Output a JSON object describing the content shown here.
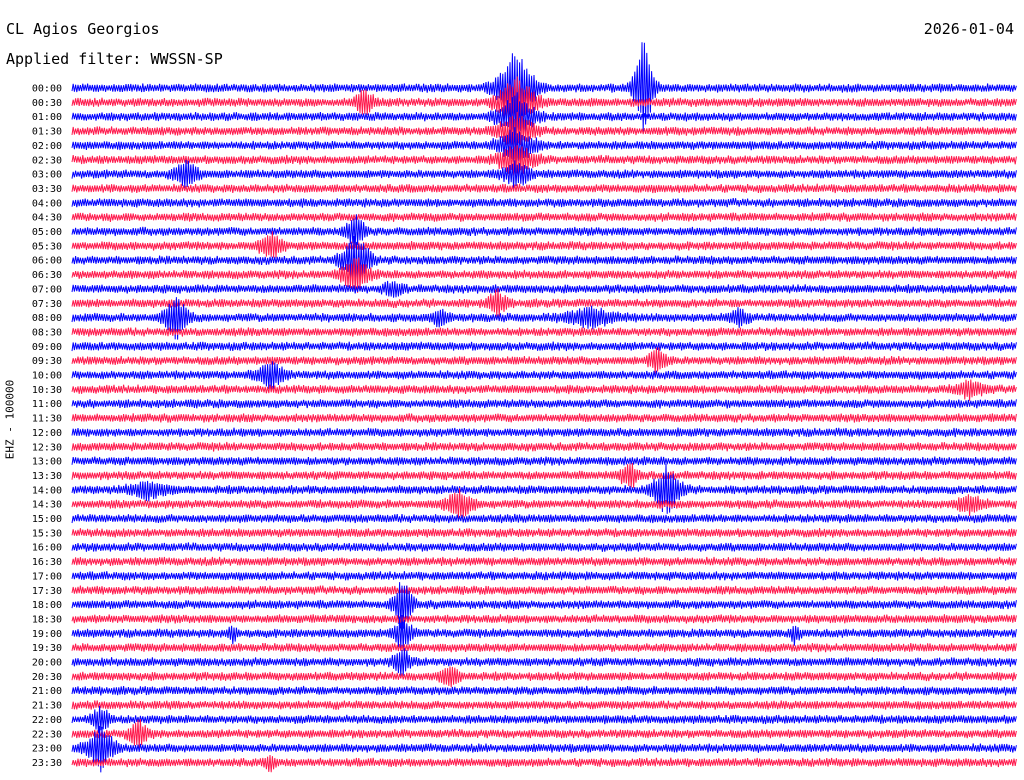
{
  "header": {
    "station": "CL Agios Georgios",
    "date": "2026-01-04",
    "filter": "Applied filter: WWSSN-SP"
  },
  "chart_data": {
    "type": "helicorder",
    "title": "CL Agios Georgios",
    "ylabel": "EHZ - 100000",
    "colors": [
      "#0000ff",
      "#ff1a4d"
    ],
    "time_labels": [
      "00:00",
      "00:30",
      "01:00",
      "01:30",
      "02:00",
      "02:30",
      "03:00",
      "03:30",
      "04:00",
      "04:30",
      "05:00",
      "05:30",
      "06:00",
      "06:30",
      "07:00",
      "07:30",
      "08:00",
      "08:30",
      "09:00",
      "09:30",
      "10:00",
      "10:30",
      "11:00",
      "11:30",
      "12:00",
      "12:30",
      "13:00",
      "13:30",
      "14:00",
      "14:30",
      "15:00",
      "15:30",
      "16:00",
      "16:30",
      "17:00",
      "17:30",
      "18:00",
      "18:30",
      "19:00",
      "19:30",
      "20:00",
      "20:30",
      "21:00",
      "21:30",
      "22:00",
      "22:30",
      "23:00",
      "23:30"
    ],
    "events": [
      {
        "row": 0,
        "x": 0.605,
        "amp": 6,
        "dur": 0.02
      },
      {
        "row": 0,
        "x": 0.47,
        "amp": 4.5,
        "dur": 0.04
      },
      {
        "row": 1,
        "x": 0.47,
        "amp": 3,
        "dur": 0.04
      },
      {
        "row": 1,
        "x": 0.31,
        "amp": 1.5,
        "dur": 0.02
      },
      {
        "row": 2,
        "x": 0.47,
        "amp": 2.5,
        "dur": 0.04
      },
      {
        "row": 3,
        "x": 0.47,
        "amp": 2,
        "dur": 0.04
      },
      {
        "row": 4,
        "x": 0.47,
        "amp": 2,
        "dur": 0.04
      },
      {
        "row": 5,
        "x": 0.47,
        "amp": 1.8,
        "dur": 0.04
      },
      {
        "row": 6,
        "x": 0.12,
        "amp": 1.6,
        "dur": 0.025
      },
      {
        "row": 6,
        "x": 0.47,
        "amp": 1.5,
        "dur": 0.03
      },
      {
        "row": 10,
        "x": 0.3,
        "amp": 2,
        "dur": 0.02
      },
      {
        "row": 11,
        "x": 0.21,
        "amp": 1.5,
        "dur": 0.025
      },
      {
        "row": 12,
        "x": 0.3,
        "amp": 3,
        "dur": 0.03
      },
      {
        "row": 13,
        "x": 0.3,
        "amp": 2,
        "dur": 0.03
      },
      {
        "row": 14,
        "x": 0.34,
        "amp": 1,
        "dur": 0.02
      },
      {
        "row": 15,
        "x": 0.45,
        "amp": 1.5,
        "dur": 0.02
      },
      {
        "row": 16,
        "x": 0.11,
        "amp": 2.5,
        "dur": 0.025
      },
      {
        "row": 16,
        "x": 0.39,
        "amp": 1,
        "dur": 0.02
      },
      {
        "row": 16,
        "x": 0.55,
        "amp": 1,
        "dur": 0.06
      },
      {
        "row": 16,
        "x": 0.705,
        "amp": 1,
        "dur": 0.02
      },
      {
        "row": 19,
        "x": 0.62,
        "amp": 1.5,
        "dur": 0.02
      },
      {
        "row": 20,
        "x": 0.21,
        "amp": 1.5,
        "dur": 0.03
      },
      {
        "row": 21,
        "x": 0.95,
        "amp": 1,
        "dur": 0.03
      },
      {
        "row": 27,
        "x": 0.59,
        "amp": 1.5,
        "dur": 0.02
      },
      {
        "row": 28,
        "x": 0.63,
        "amp": 3,
        "dur": 0.03
      },
      {
        "row": 28,
        "x": 0.08,
        "amp": 1,
        "dur": 0.04
      },
      {
        "row": 29,
        "x": 0.41,
        "amp": 1.5,
        "dur": 0.03
      },
      {
        "row": 29,
        "x": 0.95,
        "amp": 1,
        "dur": 0.03
      },
      {
        "row": 36,
        "x": 0.35,
        "amp": 3,
        "dur": 0.02
      },
      {
        "row": 38,
        "x": 0.35,
        "amp": 2,
        "dur": 0.02
      },
      {
        "row": 38,
        "x": 0.17,
        "amp": 1,
        "dur": 0.01
      },
      {
        "row": 38,
        "x": 0.765,
        "amp": 1,
        "dur": 0.01
      },
      {
        "row": 40,
        "x": 0.35,
        "amp": 1.5,
        "dur": 0.02
      },
      {
        "row": 41,
        "x": 0.4,
        "amp": 1.2,
        "dur": 0.02
      },
      {
        "row": 44,
        "x": 0.03,
        "amp": 1.5,
        "dur": 0.02
      },
      {
        "row": 45,
        "x": 0.07,
        "amp": 1.5,
        "dur": 0.02
      },
      {
        "row": 46,
        "x": 0.03,
        "amp": 2.5,
        "dur": 0.03
      },
      {
        "row": 47,
        "x": 0.21,
        "amp": 1,
        "dur": 0.01
      }
    ]
  }
}
